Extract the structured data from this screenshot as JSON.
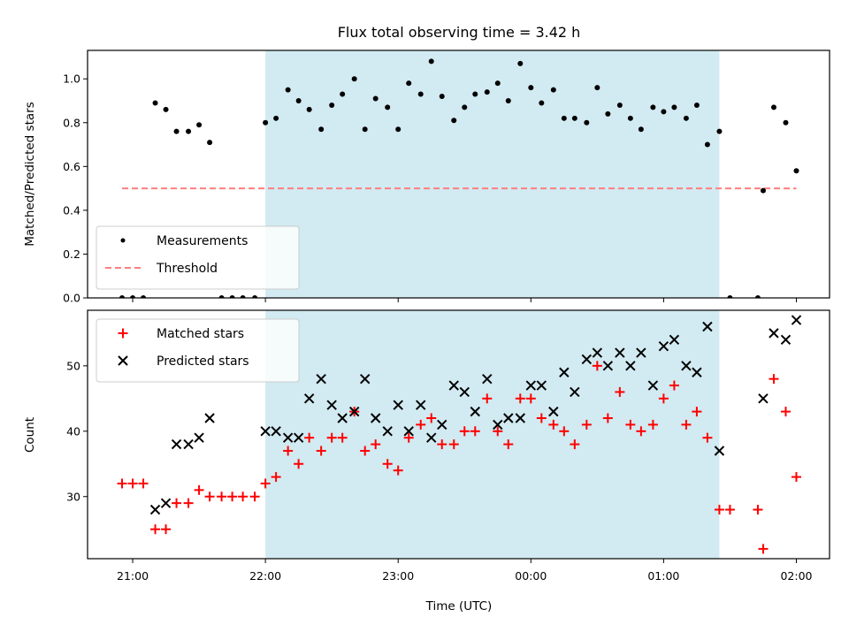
{
  "chart_data": {
    "type": "scatter",
    "title": "Flux total observing time = 3.42 h",
    "xlabel": "Time (UTC)",
    "x_ticks": [
      {
        "label": "21:00",
        "hour": 21.0
      },
      {
        "label": "22:00",
        "hour": 22.0
      },
      {
        "label": "23:00",
        "hour": 23.0
      },
      {
        "label": "00:00",
        "hour": 24.0
      },
      {
        "label": "01:00",
        "hour": 25.0
      },
      {
        "label": "02:00",
        "hour": 26.0
      }
    ],
    "xlim_hours": [
      20.66,
      26.25
    ],
    "shaded_span_hours": [
      22.0,
      25.42
    ],
    "shade_color": "#add8e6",
    "panels": [
      {
        "id": "ratio",
        "ylabel": "Matched/Predicted stars",
        "ylim": [
          0,
          1.13
        ],
        "yticks": [
          "0.0",
          "0.2",
          "0.4",
          "0.6",
          "0.8",
          "1.0"
        ],
        "legend_position": "lower left",
        "series": [
          {
            "name": "Measurements",
            "kind": "dot",
            "color": "#000000",
            "x_hours": [
              20.92,
              21.0,
              21.08,
              21.17,
              21.25,
              21.33,
              21.42,
              21.5,
              21.58,
              21.67,
              21.75,
              21.83,
              21.92,
              22.0,
              22.08,
              22.17,
              22.25,
              22.33,
              22.42,
              22.5,
              22.58,
              22.67,
              22.75,
              22.83,
              22.92,
              23.0,
              23.08,
              23.17,
              23.25,
              23.33,
              23.42,
              23.5,
              23.58,
              23.67,
              23.75,
              23.83,
              23.92,
              24.0,
              24.08,
              24.17,
              24.25,
              24.33,
              24.42,
              24.5,
              24.58,
              24.67,
              24.75,
              24.83,
              24.92,
              25.0,
              25.08,
              25.17,
              25.25,
              25.33,
              25.42,
              25.5,
              25.71,
              25.75,
              25.83,
              25.92,
              26.0
            ],
            "y": [
              0.0,
              0.0,
              0.0,
              0.89,
              0.86,
              0.76,
              0.76,
              0.79,
              0.71,
              0.0,
              0.0,
              0.0,
              0.0,
              0.8,
              0.82,
              0.95,
              0.9,
              0.86,
              0.77,
              0.88,
              0.93,
              1.0,
              0.77,
              0.91,
              0.87,
              0.77,
              0.98,
              0.93,
              1.08,
              0.92,
              0.81,
              0.87,
              0.93,
              0.94,
              0.98,
              0.9,
              1.07,
              0.96,
              0.89,
              0.95,
              0.82,
              0.82,
              0.8,
              0.96,
              0.84,
              0.88,
              0.82,
              0.77,
              0.87,
              0.85,
              0.87,
              0.82,
              0.88,
              0.7,
              0.76,
              0.0,
              0.0,
              0.49,
              0.87,
              0.8,
              0.58
            ]
          },
          {
            "name": "Threshold",
            "kind": "dashed-line",
            "color": "#ff7f7f",
            "x_hours": [
              20.92,
              26.0
            ],
            "y": [
              0.5,
              0.5
            ]
          }
        ]
      },
      {
        "id": "count",
        "ylabel": "Count",
        "ylim": [
          20.5,
          58.5
        ],
        "yticks": [
          "30",
          "40",
          "50"
        ],
        "legend_position": "upper left",
        "series": [
          {
            "name": "Matched stars",
            "kind": "plus",
            "color": "#ff0000",
            "x_hours": [
              20.92,
              21.0,
              21.08,
              21.17,
              21.25,
              21.33,
              21.42,
              21.5,
              21.58,
              21.67,
              21.75,
              21.83,
              21.92,
              22.0,
              22.08,
              22.17,
              22.25,
              22.33,
              22.42,
              22.5,
              22.58,
              22.67,
              22.75,
              22.83,
              22.92,
              23.0,
              23.08,
              23.17,
              23.25,
              23.33,
              23.42,
              23.5,
              23.58,
              23.67,
              23.75,
              23.83,
              23.92,
              24.0,
              24.08,
              24.17,
              24.25,
              24.33,
              24.42,
              24.5,
              24.58,
              24.67,
              24.75,
              24.83,
              24.92,
              25.0,
              25.08,
              25.17,
              25.25,
              25.33,
              25.42,
              25.5,
              25.71,
              25.75,
              25.83,
              25.92,
              26.0
            ],
            "y": [
              32,
              32,
              32,
              25,
              25,
              29,
              29,
              31,
              30,
              30,
              30,
              30,
              30,
              32,
              33,
              37,
              35,
              39,
              37,
              39,
              39,
              43,
              37,
              38,
              35,
              34,
              39,
              41,
              42,
              38,
              38,
              40,
              40,
              45,
              40,
              38,
              45,
              45,
              42,
              41,
              40,
              38,
              41,
              50,
              42,
              46,
              41,
              40,
              41,
              45,
              47,
              41,
              43,
              39,
              28,
              28,
              28,
              22,
              48,
              43,
              33
            ]
          },
          {
            "name": "Predicted stars",
            "kind": "cross",
            "color": "#000000",
            "x_hours": [
              21.17,
              21.25,
              21.33,
              21.42,
              21.5,
              21.58,
              22.0,
              22.08,
              22.17,
              22.25,
              22.33,
              22.42,
              22.5,
              22.58,
              22.67,
              22.75,
              22.83,
              22.92,
              23.0,
              23.08,
              23.17,
              23.25,
              23.33,
              23.42,
              23.5,
              23.58,
              23.67,
              23.75,
              23.83,
              23.92,
              24.0,
              24.08,
              24.17,
              24.25,
              24.33,
              24.42,
              24.5,
              24.58,
              24.67,
              24.75,
              24.83,
              24.92,
              25.0,
              25.08,
              25.17,
              25.25,
              25.33,
              25.42,
              25.75,
              25.83,
              25.92,
              26.0
            ],
            "y": [
              28,
              29,
              38,
              38,
              39,
              42,
              40,
              40,
              39,
              39,
              45,
              48,
              44,
              42,
              43,
              48,
              42,
              40,
              44,
              40,
              44,
              39,
              41,
              47,
              46,
              43,
              48,
              41,
              42,
              42,
              47,
              47,
              43,
              49,
              46,
              51,
              52,
              50,
              52,
              50,
              52,
              47,
              53,
              54,
              50,
              49,
              56,
              37,
              45,
              55,
              54,
              57
            ]
          }
        ]
      }
    ]
  }
}
